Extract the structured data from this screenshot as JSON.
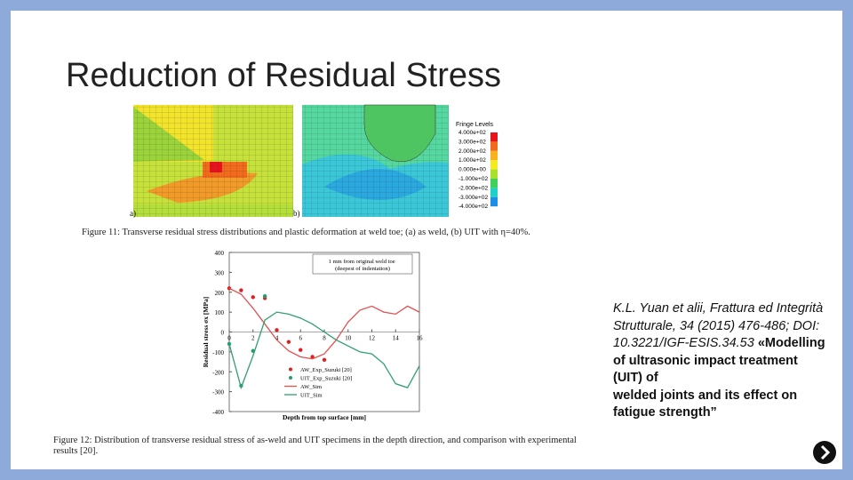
{
  "title": "Reduction of Residual Stress",
  "figure11": {
    "panel_labels": [
      "a)",
      "b)"
    ],
    "fringe_title": "Fringe Levels",
    "fringe_levels": [
      "4.000e+02",
      "3.000e+02",
      "2.000e+02",
      "1.000e+02",
      "0.000e+00",
      "-1.000e+02",
      "-2.000e+02",
      "-3.000e+02",
      "-4.000e+02"
    ],
    "fringe_colors": [
      "#e8141b",
      "#f26a1b",
      "#f7b21d",
      "#f4ea1d",
      "#a9e02a",
      "#3fd05a",
      "#1fd0c8",
      "#1d8ee8",
      "#1a34d8"
    ],
    "caption": "Figure 11: Transverse residual stress distributions and plastic deformation at weld toe; (a) as weld, (b) UIT with η=40%."
  },
  "chart_data": {
    "type": "line",
    "xlabel": "Depth from top surface [mm]",
    "ylabel": "Residual stress σx [MPa]",
    "annotation": "1 mm from original weld toe (deepest of indentation)",
    "xlim": [
      0,
      16
    ],
    "xticks": [
      0,
      2,
      4,
      6,
      8,
      10,
      12,
      14,
      16
    ],
    "ylim": [
      -400,
      400
    ],
    "yticks": [
      400,
      300,
      200,
      100,
      0,
      -100,
      -200,
      -300,
      -400
    ],
    "series": [
      {
        "name": "AW_Exp_Suzuki [20]",
        "color": "#e02020",
        "style": "markers",
        "x": [
          0,
          1,
          2,
          3,
          4,
          5,
          6,
          7,
          8
        ],
        "values": [
          220,
          210,
          175,
          170,
          10,
          -50,
          -90,
          -125,
          -140
        ]
      },
      {
        "name": "UIT_Exp_Suzuki [20]",
        "color": "#20a070",
        "style": "markers",
        "x": [
          0,
          1,
          2,
          3
        ],
        "values": [
          -60,
          -270,
          -95,
          180
        ]
      },
      {
        "name": "AW_Sim",
        "color": "#e05050",
        "style": "line",
        "x": [
          0,
          1,
          2,
          3,
          4,
          5,
          6,
          7,
          8,
          9,
          10,
          11,
          12,
          13,
          14,
          15,
          16
        ],
        "values": [
          220,
          190,
          120,
          40,
          -40,
          -95,
          -125,
          -135,
          -110,
          -40,
          50,
          110,
          130,
          100,
          90,
          130,
          100
        ]
      },
      {
        "name": "UIT_Sim",
        "color": "#30a070",
        "style": "line",
        "x": [
          0,
          1,
          2,
          3,
          4,
          5,
          6,
          7,
          8,
          9,
          10,
          11,
          12,
          13,
          14,
          15,
          16
        ],
        "values": [
          -60,
          -280,
          -120,
          60,
          100,
          90,
          70,
          40,
          0,
          -40,
          -70,
          -100,
          -110,
          -160,
          -260,
          -280,
          -170
        ]
      }
    ]
  },
  "figure12_caption": "Figure 12: Distribution of transverse residual stress of as-weld and UIT specimens in the depth direction, and comparison with experimental results [20].",
  "citation": {
    "italic": "K.L. Yuan et alii, Frattura ed Integrità Strutturale, 34 (2015) 476-486; DOI: 10.3221/IGF-ESIS.34.53",
    "bold_lines": [
      "«Modelling of ultrasonic impact treatment (UIT) of",
      "welded joints and its effect on fatigue strength”"
    ]
  }
}
